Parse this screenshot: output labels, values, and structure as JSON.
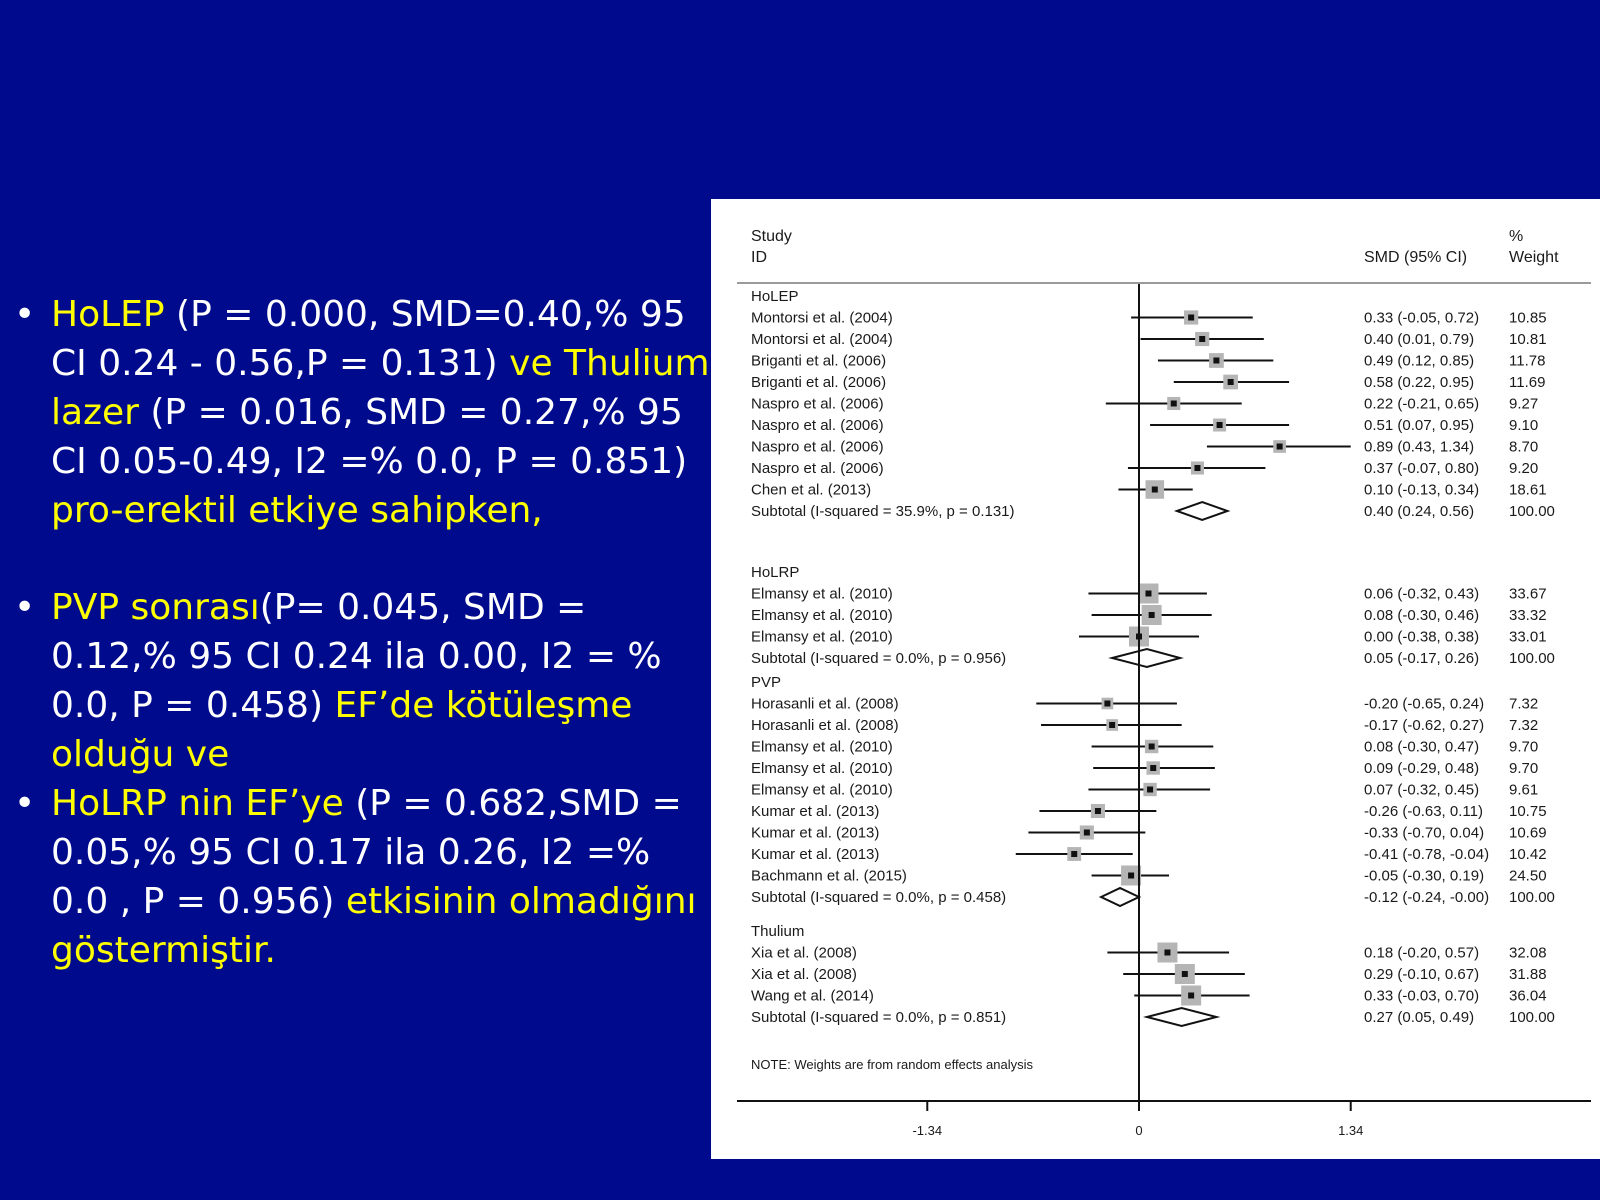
{
  "slide": {
    "bullets": [
      {
        "segments": [
          {
            "text": "HoLEP",
            "color": "yellow"
          },
          {
            "text": " (P = 0.000, SMD=0.40,% 95 CI 0.24 - 0.56,P = 0.131) ",
            "color": "white"
          },
          {
            "text": "ve Thulium lazer",
            "color": "yellow"
          },
          {
            "text": " (P = 0.016, SMD = 0.27,% 95 CI 0.05-0.49, I2 =% 0.0, P = 0.851) ",
            "color": "white"
          },
          {
            "text": "pro-erektil etkiye sahipken,",
            "color": "yellow"
          }
        ]
      },
      {
        "segments": [
          {
            "text": " PVP sonrası",
            "color": "yellow"
          },
          {
            "text": "(P= 0.045, SMD = 0.12,% 95 CI 0.24 ila 0.00, I2 = % 0.0, P = 0.458) ",
            "color": "white"
          },
          {
            "text": "EF’de kötüleşme olduğu ve",
            "color": "yellow"
          }
        ]
      },
      {
        "segments": [
          {
            "text": "HoLRP nin EF’ye",
            "color": "yellow"
          },
          {
            "text": " (P = 0.682,SMD = 0.05,% 95 CI 0.17 ila 0.26, I2 =% 0.0 , P = 0.956) ",
            "color": "white"
          },
          {
            "text": "etkisinin olmadığını göstermiştir.",
            "color": "yellow"
          }
        ]
      }
    ],
    "colors": {
      "background": "#000a8c",
      "text": "#ffffff",
      "highlight": "#ffff00"
    }
  },
  "chart_data": {
    "type": "forest",
    "header": {
      "study": "Study",
      "id": "ID",
      "effect": "SMD (95% CI)",
      "pct": "%",
      "weight": "Weight"
    },
    "x_ticks": [
      -1.34,
      0,
      1.34
    ],
    "x_tick_labels": [
      "-1.34",
      "0",
      "1.34"
    ],
    "xlim": [
      -2.5,
      3.0
    ],
    "note": "NOTE: Weights are from random effects analysis",
    "groups": [
      {
        "name": "HoLEP",
        "studies": [
          {
            "label": "Montorsi et al. (2004)",
            "smd": 0.33,
            "lo": -0.05,
            "hi": 0.72,
            "ci_text": "0.33 (-0.05, 0.72)",
            "weight": "10.85"
          },
          {
            "label": "Montorsi et al. (2004)",
            "smd": 0.4,
            "lo": 0.01,
            "hi": 0.79,
            "ci_text": "0.40 (0.01, 0.79)",
            "weight": "10.81"
          },
          {
            "label": "Briganti et al. (2006)",
            "smd": 0.49,
            "lo": 0.12,
            "hi": 0.85,
            "ci_text": "0.49 (0.12, 0.85)",
            "weight": "11.78"
          },
          {
            "label": "Briganti et al. (2006)",
            "smd": 0.58,
            "lo": 0.22,
            "hi": 0.95,
            "ci_text": "0.58 (0.22, 0.95)",
            "weight": "11.69"
          },
          {
            "label": "Naspro et al. (2006)",
            "smd": 0.22,
            "lo": -0.21,
            "hi": 0.65,
            "ci_text": "0.22 (-0.21, 0.65)",
            "weight": "9.27"
          },
          {
            "label": "Naspro et al. (2006)",
            "smd": 0.51,
            "lo": 0.07,
            "hi": 0.95,
            "ci_text": "0.51 (0.07, 0.95)",
            "weight": "9.10"
          },
          {
            "label": "Naspro et al. (2006)",
            "smd": 0.89,
            "lo": 0.43,
            "hi": 1.34,
            "ci_text": "0.89 (0.43, 1.34)",
            "weight": "8.70"
          },
          {
            "label": "Naspro et al. (2006)",
            "smd": 0.37,
            "lo": -0.07,
            "hi": 0.8,
            "ci_text": "0.37 (-0.07, 0.80)",
            "weight": "9.20"
          },
          {
            "label": "Chen et al. (2013)",
            "smd": 0.1,
            "lo": -0.13,
            "hi": 0.34,
            "ci_text": "0.10 (-0.13, 0.34)",
            "weight": "18.61"
          }
        ],
        "subtotal": {
          "label": "Subtotal  (I-squared = 35.9%, p = 0.131)",
          "smd": 0.4,
          "lo": 0.24,
          "hi": 0.56,
          "ci_text": "0.40 (0.24, 0.56)",
          "weight": "100.00"
        }
      },
      {
        "name": "HoLRP",
        "studies": [
          {
            "label": "Elmansy et al. (2010)",
            "smd": 0.06,
            "lo": -0.32,
            "hi": 0.43,
            "ci_text": "0.06 (-0.32, 0.43)",
            "weight": "33.67"
          },
          {
            "label": "Elmansy et al. (2010)",
            "smd": 0.08,
            "lo": -0.3,
            "hi": 0.46,
            "ci_text": "0.08 (-0.30, 0.46)",
            "weight": "33.32"
          },
          {
            "label": "Elmansy et al. (2010)",
            "smd": 0.0,
            "lo": -0.38,
            "hi": 0.38,
            "ci_text": "0.00 (-0.38, 0.38)",
            "weight": "33.01"
          }
        ],
        "subtotal": {
          "label": "Subtotal  (I-squared = 0.0%, p = 0.956)",
          "smd": 0.05,
          "lo": -0.17,
          "hi": 0.26,
          "ci_text": "0.05 (-0.17, 0.26)",
          "weight": "100.00"
        }
      },
      {
        "name": "PVP",
        "studies": [
          {
            "label": "Horasanli et al. (2008)",
            "smd": -0.2,
            "lo": -0.65,
            "hi": 0.24,
            "ci_text": "-0.20 (-0.65, 0.24)",
            "weight": "7.32"
          },
          {
            "label": "Horasanli et al. (2008)",
            "smd": -0.17,
            "lo": -0.62,
            "hi": 0.27,
            "ci_text": "-0.17 (-0.62, 0.27)",
            "weight": "7.32"
          },
          {
            "label": "Elmansy et al. (2010)",
            "smd": 0.08,
            "lo": -0.3,
            "hi": 0.47,
            "ci_text": "0.08 (-0.30, 0.47)",
            "weight": "9.70"
          },
          {
            "label": "Elmansy et al. (2010)",
            "smd": 0.09,
            "lo": -0.29,
            "hi": 0.48,
            "ci_text": "0.09 (-0.29, 0.48)",
            "weight": "9.70"
          },
          {
            "label": "Elmansy et al. (2010)",
            "smd": 0.07,
            "lo": -0.32,
            "hi": 0.45,
            "ci_text": "0.07 (-0.32, 0.45)",
            "weight": "9.61"
          },
          {
            "label": "Kumar et al. (2013)",
            "smd": -0.26,
            "lo": -0.63,
            "hi": 0.11,
            "ci_text": "-0.26 (-0.63, 0.11)",
            "weight": "10.75"
          },
          {
            "label": "Kumar et al. (2013)",
            "smd": -0.33,
            "lo": -0.7,
            "hi": 0.04,
            "ci_text": "-0.33 (-0.70, 0.04)",
            "weight": "10.69"
          },
          {
            "label": "Kumar et al. (2013)",
            "smd": -0.41,
            "lo": -0.78,
            "hi": -0.04,
            "ci_text": "-0.41 (-0.78, -0.04)",
            "weight": "10.42"
          },
          {
            "label": "Bachmann et al. (2015)",
            "smd": -0.05,
            "lo": -0.3,
            "hi": 0.19,
            "ci_text": "-0.05 (-0.30, 0.19)",
            "weight": "24.50"
          }
        ],
        "subtotal": {
          "label": "Subtotal  (I-squared = 0.0%, p = 0.458)",
          "smd": -0.12,
          "lo": -0.24,
          "hi": -0.0,
          "ci_text": "-0.12 (-0.24, -0.00)",
          "weight": "100.00"
        }
      },
      {
        "name": "Thulium",
        "studies": [
          {
            "label": "Xia et al. (2008)",
            "smd": 0.18,
            "lo": -0.2,
            "hi": 0.57,
            "ci_text": "0.18 (-0.20, 0.57)",
            "weight": "32.08"
          },
          {
            "label": "Xia et al. (2008)",
            "smd": 0.29,
            "lo": -0.1,
            "hi": 0.67,
            "ci_text": "0.29 (-0.10, 0.67)",
            "weight": "31.88"
          },
          {
            "label": "Wang et al. (2014)",
            "smd": 0.33,
            "lo": -0.03,
            "hi": 0.7,
            "ci_text": "0.33 (-0.03, 0.70)",
            "weight": "36.04"
          }
        ],
        "subtotal": {
          "label": "Subtotal  (I-squared = 0.0%, p = 0.851)",
          "smd": 0.27,
          "lo": 0.05,
          "hi": 0.49,
          "ci_text": "0.27 (0.05, 0.49)",
          "weight": "100.00"
        }
      }
    ]
  }
}
